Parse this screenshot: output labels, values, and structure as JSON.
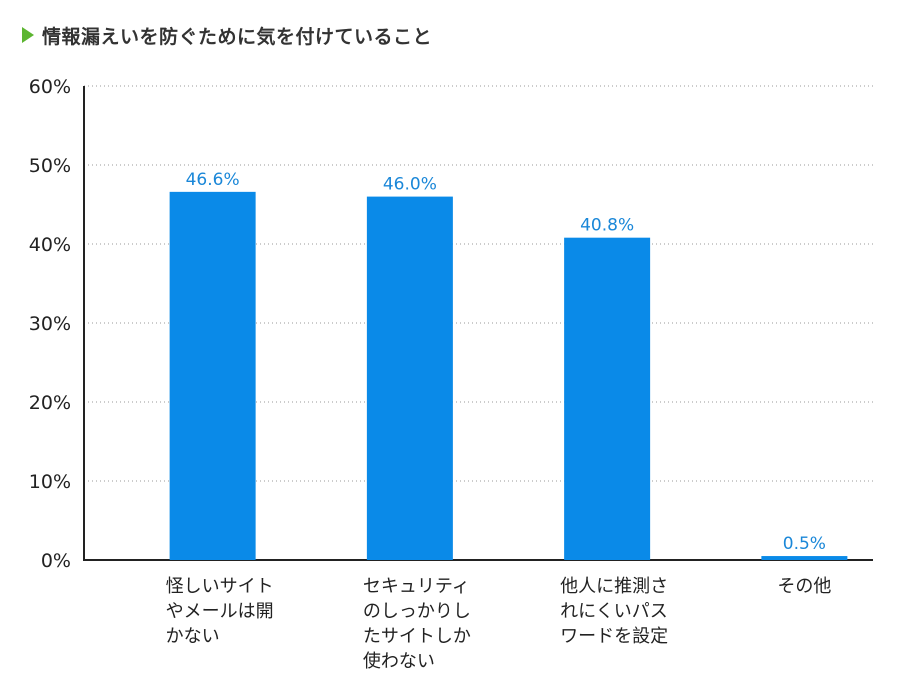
{
  "title": "情報漏えいを防ぐために気を付けていること",
  "colors": {
    "bar": "#0a8ae8",
    "data_label": "#1a87d8",
    "title_marker": "#5cb531"
  },
  "chart_data": {
    "type": "bar",
    "title": "情報漏えいを防ぐために気を付けていること",
    "categories": [
      [
        "怪しいサイト",
        "やメールは開",
        "かない"
      ],
      [
        "セキュリティ",
        "のしっかりし",
        "たサイトしか",
        "使わない"
      ],
      [
        "他人に推測さ",
        "れにくいパス",
        "ワードを設定"
      ],
      [
        "その他"
      ]
    ],
    "values": [
      46.6,
      46.0,
      40.8,
      0.5
    ],
    "data_labels": [
      "46.6%",
      "46.0%",
      "40.8%",
      "0.5%"
    ],
    "y_ticks": [
      "0%",
      "10%",
      "20%",
      "30%",
      "40%",
      "50%",
      "60%"
    ],
    "ylim": [
      0,
      60
    ],
    "grid": true,
    "xlabel": "",
    "ylabel": ""
  }
}
